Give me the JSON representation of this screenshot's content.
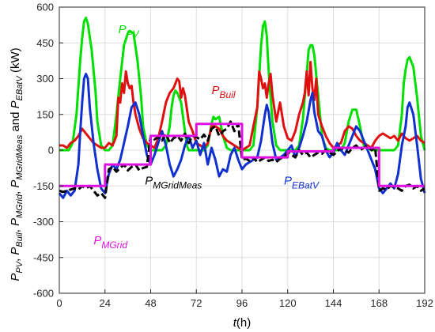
{
  "chart_data": {
    "type": "line",
    "title": "",
    "xlabel": "t(h)",
    "ylabel": "P_PV, P_Buil, P_MGrid, P_MGridMeas and P_EBatV (kW)",
    "xlim": [
      0,
      192
    ],
    "ylim": [
      -600,
      600
    ],
    "xticks": [
      0,
      24,
      48,
      72,
      96,
      120,
      144,
      168,
      192
    ],
    "yticks": [
      -600,
      -450,
      -300,
      -150,
      0,
      150,
      300,
      450,
      600
    ],
    "grid": true,
    "series": [
      {
        "key": "pv",
        "name": "P_PV",
        "label_main": "P",
        "label_sub": "PV",
        "color": "#00e000",
        "x": [
          0,
          5,
          7,
          9,
          11,
          12,
          13,
          14,
          15,
          17,
          19,
          20,
          22,
          24,
          26,
          28,
          30,
          32,
          34,
          36,
          37,
          39,
          41,
          43,
          44,
          46,
          48,
          50,
          54,
          56,
          58,
          59,
          60,
          61,
          62,
          64,
          66,
          67,
          68,
          69,
          71,
          74,
          76,
          78,
          80,
          81,
          82,
          84,
          86,
          88,
          90,
          92,
          96,
          100,
          102,
          104,
          106,
          107,
          108,
          109,
          110,
          112,
          114,
          116,
          118,
          120,
          124,
          126,
          128,
          130,
          131,
          132,
          133,
          134,
          136,
          138,
          140,
          142,
          144,
          148,
          150,
          152,
          154,
          156,
          158,
          160,
          164,
          168,
          172,
          176,
          178,
          180,
          181,
          182,
          183,
          184,
          186,
          188,
          190,
          192
        ],
        "y": [
          0,
          0,
          30,
          150,
          380,
          470,
          540,
          555,
          530,
          420,
          250,
          120,
          20,
          0,
          0,
          20,
          150,
          300,
          440,
          490,
          500,
          490,
          380,
          220,
          100,
          20,
          0,
          0,
          0,
          20,
          100,
          180,
          230,
          250,
          240,
          200,
          80,
          20,
          0,
          0,
          0,
          0,
          0,
          20,
          110,
          140,
          130,
          140,
          60,
          10,
          0,
          0,
          0,
          0,
          20,
          180,
          440,
          520,
          540,
          480,
          330,
          120,
          20,
          0,
          0,
          0,
          0,
          20,
          130,
          320,
          420,
          440,
          440,
          400,
          230,
          60,
          10,
          0,
          0,
          0,
          30,
          120,
          170,
          170,
          100,
          20,
          0,
          0,
          0,
          0,
          20,
          150,
          280,
          340,
          380,
          390,
          350,
          220,
          60,
          0
        ]
      },
      {
        "key": "buil",
        "name": "P_Buil",
        "label_main": "P",
        "label_sub": "Buil",
        "color": "#e01010",
        "x": [
          0,
          2,
          4,
          6,
          8,
          10,
          12,
          14,
          16,
          18,
          20,
          22,
          24,
          26,
          28,
          30,
          31,
          32,
          33,
          34,
          35,
          36,
          37,
          38,
          39,
          40,
          42,
          44,
          46,
          48,
          50,
          52,
          54,
          56,
          58,
          60,
          62,
          63,
          64,
          65,
          66,
          68,
          70,
          72,
          74,
          76,
          78,
          80,
          82,
          84,
          86,
          88,
          90,
          92,
          94,
          96,
          98,
          100,
          102,
          104,
          105,
          106,
          107,
          108,
          109,
          110,
          111,
          112,
          114,
          116,
          118,
          120,
          122,
          124,
          126,
          128,
          129,
          130,
          131,
          132,
          133,
          134,
          135,
          136,
          138,
          140,
          142,
          144,
          146,
          148,
          150,
          152,
          154,
          156,
          158,
          160,
          162,
          164,
          166,
          168,
          170,
          172,
          174,
          176,
          178,
          180,
          182,
          184,
          186,
          188,
          190,
          192
        ],
        "y": [
          20,
          20,
          10,
          30,
          40,
          60,
          90,
          70,
          50,
          30,
          20,
          10,
          10,
          30,
          20,
          60,
          220,
          200,
          280,
          240,
          330,
          280,
          260,
          270,
          200,
          150,
          90,
          50,
          30,
          20,
          10,
          50,
          120,
          200,
          240,
          260,
          300,
          290,
          220,
          260,
          230,
          120,
          80,
          30,
          20,
          10,
          30,
          100,
          100,
          90,
          60,
          40,
          30,
          20,
          10,
          0,
          10,
          20,
          100,
          180,
          330,
          300,
          260,
          280,
          220,
          280,
          320,
          230,
          120,
          200,
          100,
          50,
          40,
          80,
          150,
          200,
          240,
          330,
          230,
          370,
          260,
          210,
          300,
          150,
          100,
          60,
          30,
          10,
          20,
          30,
          80,
          100,
          90,
          60,
          40,
          30,
          20,
          10,
          40,
          60,
          70,
          60,
          50,
          60,
          40,
          70,
          50,
          40,
          50,
          60,
          40,
          30
        ]
      },
      {
        "key": "ebat",
        "name": "P_EBatV",
        "label_main": "P",
        "label_sub": "EBatV",
        "color": "#1030d0",
        "x": [
          0,
          2,
          4,
          6,
          8,
          10,
          11,
          12,
          13,
          14,
          15,
          16,
          18,
          20,
          22,
          24,
          26,
          28,
          30,
          32,
          34,
          36,
          38,
          40,
          42,
          44,
          46,
          48,
          50,
          52,
          54,
          56,
          58,
          60,
          62,
          64,
          66,
          68,
          70,
          72,
          74,
          76,
          78,
          80,
          82,
          84,
          86,
          88,
          90,
          92,
          94,
          96,
          98,
          100,
          102,
          104,
          106,
          108,
          109,
          110,
          112,
          114,
          116,
          118,
          120,
          122,
          124,
          126,
          128,
          130,
          132,
          133,
          134,
          136,
          138,
          140,
          142,
          144,
          146,
          148,
          150,
          152,
          154,
          156,
          158,
          160,
          162,
          164,
          166,
          168,
          170,
          172,
          174,
          176,
          178,
          180,
          182,
          183,
          184,
          186,
          188,
          190,
          192
        ],
        "y": [
          -180,
          -200,
          -170,
          -190,
          -170,
          -60,
          80,
          200,
          300,
          320,
          300,
          180,
          30,
          -80,
          -160,
          -180,
          -100,
          -60,
          -80,
          -40,
          30,
          100,
          180,
          200,
          150,
          60,
          -20,
          -60,
          -20,
          30,
          80,
          20,
          -60,
          -110,
          -80,
          -40,
          20,
          60,
          10,
          40,
          -20,
          30,
          -60,
          10,
          -40,
          -110,
          -80,
          -90,
          -20,
          10,
          -40,
          -80,
          -60,
          -50,
          -40,
          -30,
          40,
          150,
          190,
          160,
          30,
          -40,
          -30,
          -20,
          0,
          20,
          -30,
          10,
          60,
          120,
          210,
          240,
          160,
          80,
          60,
          0,
          -30,
          -10,
          30,
          0,
          -20,
          20,
          60,
          100,
          80,
          40,
          0,
          -40,
          -80,
          -160,
          -180,
          -160,
          -140,
          -160,
          -100,
          20,
          100,
          180,
          200,
          150,
          20,
          -120,
          -180
        ]
      },
      {
        "key": "meas",
        "name": "P_MGridMeas",
        "label_main": "P",
        "label_sub": "MGridMeas",
        "color": "#000000",
        "x": [
          0,
          2,
          4,
          6,
          8,
          10,
          12,
          14,
          16,
          18,
          20,
          22,
          24,
          26,
          28,
          30,
          32,
          34,
          36,
          38,
          40,
          42,
          44,
          46,
          48,
          50,
          52,
          54,
          56,
          58,
          60,
          62,
          64,
          66,
          68,
          70,
          72,
          74,
          76,
          78,
          80,
          82,
          84,
          86,
          88,
          90,
          92,
          94,
          96,
          98,
          100,
          102,
          104,
          106,
          108,
          110,
          112,
          114,
          116,
          118,
          120,
          122,
          124,
          126,
          128,
          130,
          132,
          134,
          136,
          138,
          140,
          142,
          144,
          146,
          148,
          150,
          152,
          154,
          156,
          158,
          160,
          162,
          164,
          166,
          168,
          170,
          172,
          174,
          176,
          178,
          180,
          182,
          184,
          186,
          188,
          190,
          192
        ],
        "y": [
          -170,
          -175,
          -170,
          -165,
          -160,
          -165,
          -150,
          -160,
          -150,
          -170,
          -190,
          -180,
          -200,
          -80,
          -70,
          -90,
          -75,
          -60,
          -85,
          -70,
          -60,
          -85,
          -75,
          -70,
          60,
          45,
          55,
          40,
          70,
          30,
          50,
          60,
          40,
          70,
          30,
          60,
          55,
          45,
          65,
          40,
          90,
          100,
          60,
          80,
          90,
          120,
          80,
          110,
          -40,
          -35,
          -45,
          -30,
          -50,
          -40,
          -30,
          -45,
          -40,
          -50,
          -35,
          -30,
          -10,
          -20,
          -30,
          0,
          -20,
          -10,
          -30,
          -20,
          -10,
          -15,
          0,
          -10,
          -20,
          -5,
          10,
          0,
          -10,
          10,
          20,
          0,
          10,
          20,
          0,
          10,
          -170,
          -160,
          -165,
          -150,
          -155,
          -160,
          -170,
          -150,
          -145,
          -160,
          -150,
          -170,
          -160
        ]
      },
      {
        "key": "mgrid",
        "name": "P_MGrid",
        "label_main": "P",
        "label_sub": "MGrid",
        "color": "#e010e0",
        "x": [
          0,
          24,
          24,
          48,
          48,
          72,
          72,
          96,
          96,
          120,
          120,
          144,
          144,
          168,
          168,
          192
        ],
        "y": [
          -150,
          -150,
          -60,
          -60,
          60,
          60,
          110,
          110,
          -30,
          -30,
          -5,
          -5,
          10,
          10,
          -150,
          -150
        ]
      }
    ],
    "annotations": [
      {
        "series": "pv",
        "x": 31,
        "y": 490
      },
      {
        "series": "buil",
        "x": 80,
        "y": 235
      },
      {
        "series": "meas",
        "x": 45,
        "y": -145
      },
      {
        "series": "ebat",
        "x": 118,
        "y": -145
      },
      {
        "series": "mgrid",
        "x": 18,
        "y": -395
      }
    ]
  }
}
